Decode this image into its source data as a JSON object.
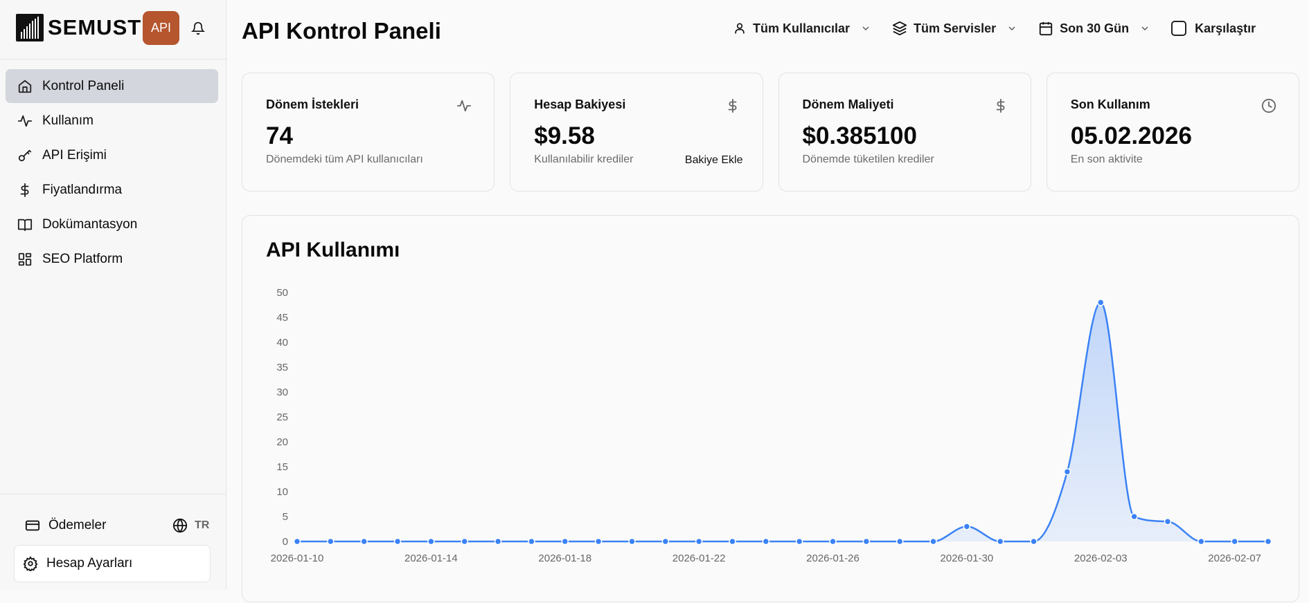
{
  "brand": {
    "name": "SEMUST",
    "badge": "API"
  },
  "sidebar": {
    "items": [
      {
        "label": "Kontrol Paneli",
        "icon": "home-icon",
        "active": true
      },
      {
        "label": "Kullanım",
        "icon": "activity-icon"
      },
      {
        "label": "API Erişimi",
        "icon": "key-icon"
      },
      {
        "label": "Fiyatlandırma",
        "icon": "dollar-icon"
      },
      {
        "label": "Dokümantasyon",
        "icon": "book-icon"
      },
      {
        "label": "SEO Platform",
        "icon": "grid-icon"
      }
    ],
    "payments": "Ödemeler",
    "language": "TR",
    "settings": "Hesap Ayarları"
  },
  "header": {
    "title": "API Kontrol Paneli",
    "users_filter": "Tüm Kullanıcılar",
    "services_filter": "Tüm Servisler",
    "period_filter": "Son 30 Gün",
    "compare": "Karşılaştır"
  },
  "cards": [
    {
      "label": "Dönem İstekleri",
      "value": "74",
      "sub": "Dönemdeki tüm API kullanıcıları",
      "icon": "activity-icon"
    },
    {
      "label": "Hesap Bakiyesi",
      "value": "$9.58",
      "sub": "Kullanılabilir krediler",
      "action": "Bakiye Ekle",
      "icon": "dollar-icon"
    },
    {
      "label": "Dönem Maliyeti",
      "value": "$0.385100",
      "sub": "Dönemde tüketilen krediler",
      "icon": "dollar-icon"
    },
    {
      "label": "Son Kullanım",
      "value": "05.02.2026",
      "sub": "En son aktivite",
      "icon": "clock-icon"
    }
  ],
  "colors": {
    "accent": "#3b82f6",
    "badge": "#b5562f",
    "active_nav": "#d4d6dd"
  },
  "chart_data": {
    "type": "area",
    "title": "API Kullanımı",
    "ylim": [
      0,
      50
    ],
    "yticks": [
      0,
      5,
      10,
      15,
      20,
      25,
      30,
      35,
      40,
      45,
      50
    ],
    "grid": false,
    "x": [
      "2026-01-10",
      "2026-01-11",
      "2026-01-12",
      "2026-01-13",
      "2026-01-14",
      "2026-01-15",
      "2026-01-16",
      "2026-01-17",
      "2026-01-18",
      "2026-01-19",
      "2026-01-20",
      "2026-01-21",
      "2026-01-22",
      "2026-01-23",
      "2026-01-24",
      "2026-01-25",
      "2026-01-26",
      "2026-01-27",
      "2026-01-28",
      "2026-01-29",
      "2026-01-30",
      "2026-01-31",
      "2026-02-01",
      "2026-02-02",
      "2026-02-03",
      "2026-02-04",
      "2026-02-05",
      "2026-02-06",
      "2026-02-07",
      "2026-02-08"
    ],
    "xtick_labels": [
      "2026-01-10",
      "2026-01-14",
      "2026-01-18",
      "2026-01-22",
      "2026-01-26",
      "2026-01-30",
      "2026-02-03",
      "2026-02-07"
    ],
    "values": [
      0,
      0,
      0,
      0,
      0,
      0,
      0,
      0,
      0,
      0,
      0,
      0,
      0,
      0,
      0,
      0,
      0,
      0,
      0,
      0,
      3,
      0,
      0,
      14,
      48,
      5,
      4,
      0,
      0,
      0
    ]
  }
}
